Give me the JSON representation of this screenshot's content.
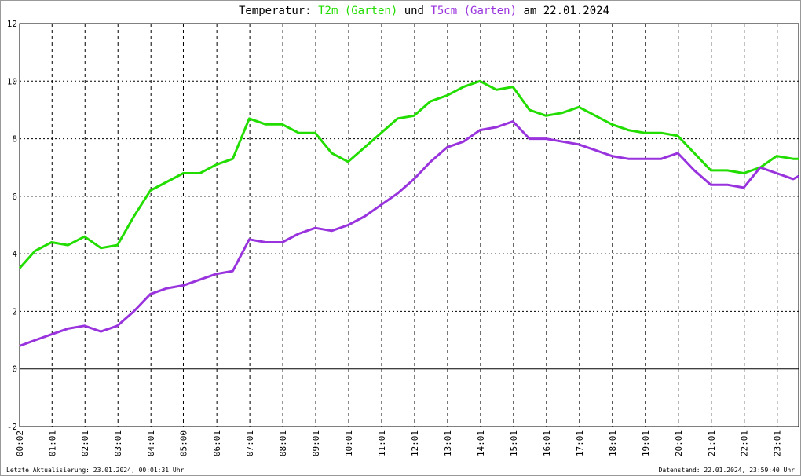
{
  "chart_data": {
    "type": "line",
    "title_parts": [
      "Temperatur:",
      "und",
      "am 22.01.2024"
    ],
    "footer_left": "Letzte Aktualisierung: 23.01.2024, 00:01:31 Uhr",
    "footer_right": "Datenstand: 22.01.2024, 23:59:40 Uhr",
    "x": [
      "00:02",
      "00:30",
      "01:00",
      "01:30",
      "02:00",
      "02:30",
      "03:00",
      "03:30",
      "04:00",
      "04:30",
      "05:00",
      "05:30",
      "06:00",
      "06:30",
      "07:00",
      "07:30",
      "08:00",
      "08:30",
      "09:00",
      "09:30",
      "10:00",
      "10:30",
      "11:00",
      "11:30",
      "12:00",
      "12:30",
      "13:00",
      "13:30",
      "14:00",
      "14:30",
      "15:00",
      "15:30",
      "16:00",
      "16:30",
      "17:00",
      "17:30",
      "18:00",
      "18:30",
      "19:00",
      "19:30",
      "20:00",
      "20:30",
      "21:00",
      "21:30",
      "22:00",
      "22:30",
      "23:00",
      "23:30",
      "23:40"
    ],
    "series": [
      {
        "name": "T2m (Garten)",
        "color": "#22dd00",
        "values": [
          3.5,
          4.1,
          4.4,
          4.3,
          4.6,
          4.2,
          4.3,
          5.3,
          6.2,
          6.5,
          6.8,
          6.8,
          7.1,
          7.3,
          8.7,
          8.5,
          8.5,
          8.2,
          8.2,
          7.5,
          7.2,
          7.7,
          8.2,
          8.7,
          8.8,
          9.3,
          9.5,
          9.8,
          10.0,
          9.7,
          9.8,
          9.0,
          8.8,
          8.9,
          9.1,
          8.8,
          8.5,
          8.3,
          8.2,
          8.2,
          8.1,
          7.5,
          6.9,
          6.9,
          6.8,
          7.0,
          7.4,
          7.3,
          7.3
        ]
      },
      {
        "name": "T5cm (Garten)",
        "color": "#9933dd",
        "values": [
          0.8,
          1.0,
          1.2,
          1.4,
          1.5,
          1.3,
          1.5,
          2.0,
          2.6,
          2.8,
          2.9,
          3.1,
          3.3,
          3.4,
          4.5,
          4.4,
          4.4,
          4.7,
          4.9,
          4.8,
          5.0,
          5.3,
          5.7,
          6.1,
          6.6,
          7.2,
          7.7,
          7.9,
          8.3,
          8.4,
          8.6,
          8.0,
          8.0,
          7.9,
          7.8,
          7.6,
          7.4,
          7.3,
          7.3,
          7.3,
          7.5,
          6.9,
          6.4,
          6.4,
          6.3,
          7.0,
          6.8,
          6.6,
          6.7
        ]
      }
    ],
    "xlim": [
      "00:02",
      "23:40"
    ],
    "xticks": [
      "00:02",
      "01:01",
      "02:01",
      "03:01",
      "04:01",
      "05:00",
      "06:01",
      "07:01",
      "08:01",
      "09:01",
      "10:01",
      "11:01",
      "12:01",
      "13:01",
      "14:01",
      "15:01",
      "16:01",
      "17:01",
      "18:01",
      "19:01",
      "20:01",
      "21:01",
      "22:01",
      "23:01"
    ],
    "ylim": [
      -2,
      12
    ],
    "yticks": [
      -2,
      0,
      2,
      4,
      6,
      8,
      10,
      12
    ],
    "grid": true
  }
}
